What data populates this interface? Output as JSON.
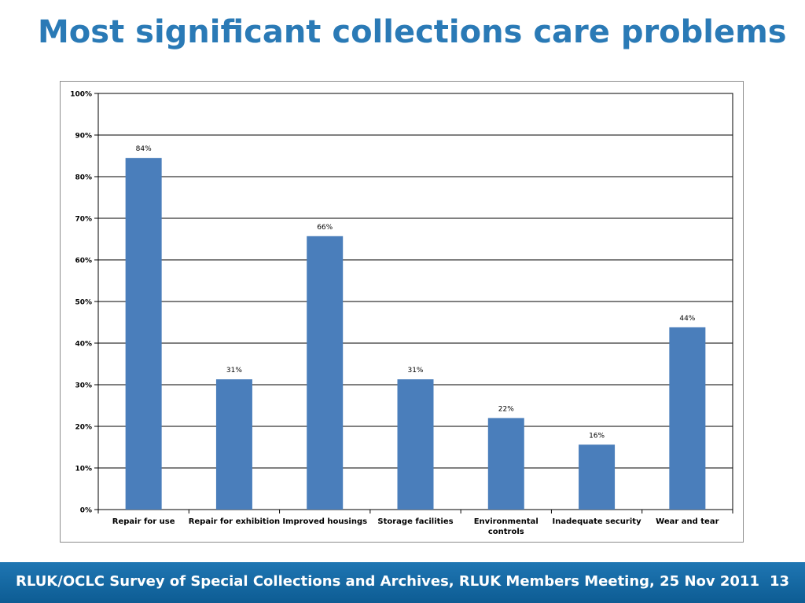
{
  "slide": {
    "title": "Most significant collections care problems",
    "footer": "RLUK/OCLC Survey of Special Collections and Archives, RLUK Members Meeting, 25 Nov 2011",
    "page_number": "13"
  },
  "colors": {
    "title": "#2a7ab6",
    "bar": "#4a7ebb",
    "footer": "#1b6fab"
  },
  "chart_data": {
    "type": "bar",
    "title": "",
    "xlabel": "",
    "ylabel": "",
    "ylim": [
      0,
      100
    ],
    "yticks": [
      0,
      10,
      20,
      30,
      40,
      50,
      60,
      70,
      80,
      90,
      100
    ],
    "ytick_labels": [
      "0%",
      "10%",
      "20%",
      "30%",
      "40%",
      "50%",
      "60%",
      "70%",
      "80%",
      "90%",
      "100%"
    ],
    "grid": true,
    "categories": [
      [
        "Repair for use"
      ],
      [
        "Repair for exhibition"
      ],
      [
        "Improved housings"
      ],
      [
        "Storage facilities"
      ],
      [
        "Environmental",
        "controls"
      ],
      [
        "Inadequate security"
      ],
      [
        "Wear and tear"
      ]
    ],
    "values": [
      84.5,
      31.3,
      65.7,
      31.3,
      22.0,
      15.6,
      43.8
    ],
    "labels": [
      "84%",
      "31%",
      "66%",
      "31%",
      "22%",
      "16%",
      "44%"
    ]
  }
}
